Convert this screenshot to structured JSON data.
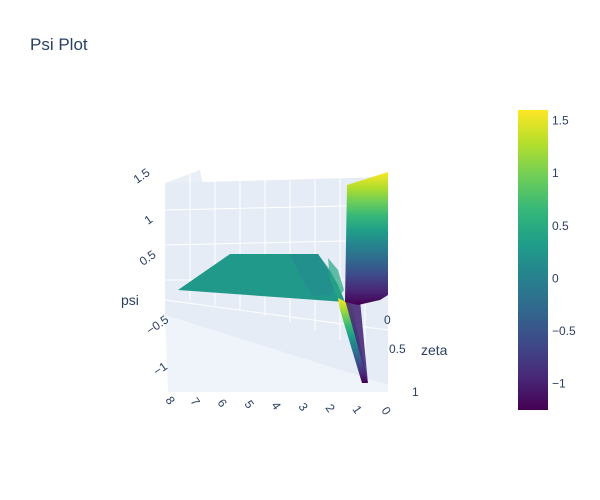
{
  "chart_data": {
    "type": "surface",
    "title": "Psi Plot",
    "colorscale": "Viridis",
    "colorscale_stops": [
      "#440154",
      "#482878",
      "#3e4989",
      "#31688e",
      "#26828e",
      "#1f9e89",
      "#35b779",
      "#6ece58",
      "#b5de2b",
      "#fde725"
    ],
    "cmin": -1.25,
    "cmax": 1.6,
    "colorbar_ticks": [
      "1.5",
      "1",
      "0.5",
      "0",
      "−0.5",
      "−1"
    ],
    "colorbar_tick_values": [
      1.5,
      1,
      0.5,
      0,
      -0.5,
      -1
    ],
    "axes": {
      "x": {
        "label": "",
        "ticks": [
          "8",
          "7",
          "6",
          "5",
          "4",
          "3",
          "2",
          "1",
          "0"
        ],
        "range": [
          0,
          8
        ]
      },
      "y": {
        "label": "zeta",
        "ticks": [
          "0",
          "0.5",
          "1"
        ],
        "range": [
          0,
          1
        ]
      },
      "z": {
        "label": "psi",
        "ticks": [
          "1.5",
          "1",
          "0.5",
          "−0.5",
          "−1"
        ],
        "range": [
          -1.25,
          1.6
        ]
      }
    },
    "surface_summary": {
      "flat_level": 0.28,
      "peak_max": 1.6,
      "trough_min": -1.2
    }
  }
}
